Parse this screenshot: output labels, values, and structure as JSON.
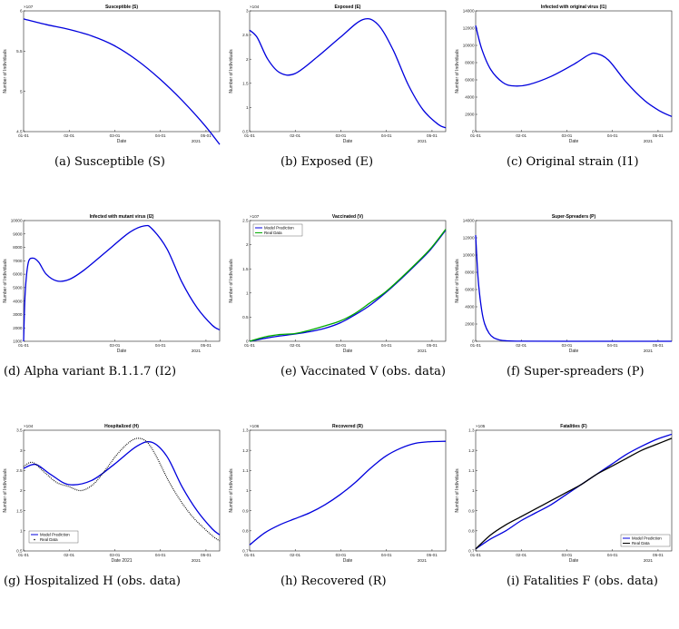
{
  "chart_data": [
    {
      "panel": "a",
      "type": "line",
      "title": "Susceptible (S)",
      "xlabel": "Date",
      "ylabel": "Number of Individuals",
      "exponent": "10^7",
      "caption": "(a) Susceptible (S)",
      "xticks": [
        "01-01",
        "02-01",
        "03-01",
        "04-01",
        "05-01"
      ],
      "year_label": "2021",
      "xlim": [
        0,
        130
      ],
      "ylim": [
        4.5,
        6.0
      ],
      "yticks": [
        "4.5",
        "5",
        "5.5",
        "6"
      ],
      "series": [
        {
          "name": "",
          "color": "#0000dd",
          "x": [
            0,
            15,
            30,
            45,
            60,
            75,
            90,
            105,
            120,
            130
          ],
          "y": [
            5.9,
            5.83,
            5.77,
            5.69,
            5.57,
            5.39,
            5.16,
            4.89,
            4.58,
            4.34
          ]
        }
      ]
    },
    {
      "panel": "b",
      "type": "line",
      "title": "Exposed (E)",
      "xlabel": "Date",
      "ylabel": "Number of Individuals",
      "exponent": "10^4",
      "caption": "(b) Exposed (E)",
      "xticks": [
        "01-01",
        "02-01",
        "03-01",
        "04-01",
        "05-01"
      ],
      "year_label": "2021",
      "xlim": [
        0,
        130
      ],
      "ylim": [
        0.5,
        3.0
      ],
      "yticks": [
        "0.5",
        "1",
        "1.5",
        "2",
        "2.5",
        "3"
      ],
      "series": [
        {
          "name": "",
          "color": "#0000dd",
          "x": [
            0,
            5,
            12,
            20,
            30,
            45,
            60,
            75,
            85,
            95,
            105,
            115,
            125,
            130
          ],
          "y": [
            2.6,
            2.45,
            2.0,
            1.72,
            1.7,
            2.05,
            2.45,
            2.82,
            2.72,
            2.2,
            1.48,
            0.95,
            0.65,
            0.58
          ]
        }
      ]
    },
    {
      "panel": "c",
      "type": "line",
      "title": "Infected with original virus (I1)",
      "xlabel": "Date",
      "ylabel": "Number of Individuals",
      "exponent": "",
      "caption": "(c) Original strain (I1)",
      "xticks": [
        "01-01",
        "02-01",
        "03-01",
        "04-01",
        "05-01"
      ],
      "year_label": "2021",
      "xlim": [
        0,
        130
      ],
      "ylim": [
        0,
        14000
      ],
      "yticks": [
        "0",
        "2000",
        "4000",
        "6000",
        "8000",
        "10000",
        "12000",
        "14000"
      ],
      "series": [
        {
          "name": "",
          "color": "#0000dd",
          "x": [
            0,
            4,
            10,
            18,
            25,
            35,
            50,
            65,
            75,
            80,
            88,
            100,
            112,
            122,
            130
          ],
          "y": [
            12300,
            9600,
            7200,
            5700,
            5300,
            5450,
            6400,
            7800,
            8900,
            9050,
            8300,
            5700,
            3600,
            2400,
            1750
          ]
        }
      ]
    },
    {
      "panel": "d",
      "type": "line",
      "title": "Infected with mutant virus (I2)",
      "xlabel": "Date",
      "ylabel": "Number of Individuals",
      "exponent": "",
      "caption": "(d) Alpha variant B.1.1.7 (I2)",
      "xticks": [
        "01-01",
        "03-01",
        "04-01",
        "05-01"
      ],
      "year_label": "2021",
      "xlim": [
        0,
        130
      ],
      "ylim": [
        1000,
        10000
      ],
      "yticks": [
        "1000",
        "2000",
        "3000",
        "4000",
        "5000",
        "6000",
        "7000",
        "8000",
        "9000",
        "10000"
      ],
      "series": [
        {
          "name": "",
          "color": "#0000dd",
          "x": [
            0,
            1,
            3,
            6,
            10,
            15,
            22,
            30,
            40,
            55,
            70,
            80,
            85,
            95,
            105,
            115,
            125,
            130
          ],
          "y": [
            1000,
            4500,
            6800,
            7200,
            6900,
            6000,
            5500,
            5600,
            6300,
            7700,
            9100,
            9600,
            9400,
            7900,
            5400,
            3500,
            2200,
            1850
          ]
        }
      ]
    },
    {
      "panel": "e",
      "type": "line",
      "title": "Vaccinated (V)",
      "xlabel": "Date",
      "ylabel": "Number of Individuals",
      "exponent": "10^7",
      "caption": "(e) Vaccinated V (obs. data)",
      "xticks": [
        "01-01",
        "02-01",
        "03-01",
        "04-01",
        "05-01"
      ],
      "year_label": "2021",
      "xlim": [
        0,
        130
      ],
      "ylim": [
        0,
        2.5
      ],
      "yticks": [
        "0",
        "0.5",
        "1",
        "1.5",
        "2",
        "2.5"
      ],
      "legend": [
        "Model Prediction",
        "Real Data"
      ],
      "series": [
        {
          "name": "Model Prediction",
          "color": "#0000dd",
          "x": [
            0,
            10,
            20,
            30,
            40,
            50,
            60,
            70,
            80,
            90,
            100,
            110,
            120,
            130
          ],
          "y": [
            0.0,
            0.06,
            0.11,
            0.15,
            0.2,
            0.27,
            0.38,
            0.55,
            0.75,
            1.0,
            1.28,
            1.58,
            1.9,
            2.3
          ]
        },
        {
          "name": "Real Data",
          "color": "#00aa00",
          "x": [
            0,
            10,
            20,
            30,
            40,
            50,
            60,
            70,
            80,
            90,
            100,
            110,
            120,
            130
          ],
          "y": [
            0.0,
            0.09,
            0.14,
            0.16,
            0.23,
            0.32,
            0.42,
            0.58,
            0.8,
            1.02,
            1.3,
            1.6,
            1.92,
            2.32
          ]
        }
      ]
    },
    {
      "panel": "f",
      "type": "line",
      "title": "Super-Spreaders (P)",
      "xlabel": "Date",
      "ylabel": "Number of Individuals",
      "exponent": "",
      "caption": "(f) Super-spreaders (P)",
      "xticks": [
        "01-01",
        "02-01",
        "03-01",
        "04-01",
        "05-01"
      ],
      "year_label": "2021",
      "xlim": [
        0,
        130
      ],
      "ylim": [
        0,
        14000
      ],
      "yticks": [
        "0",
        "2000",
        "4000",
        "6000",
        "8000",
        "10000",
        "12000",
        "14000"
      ],
      "series": [
        {
          "name": "",
          "color": "#0000dd",
          "x": [
            0,
            1,
            2,
            4,
            6,
            9,
            12,
            16,
            20,
            30,
            60,
            130
          ],
          "y": [
            12300,
            9000,
            6500,
            3600,
            2000,
            900,
            400,
            150,
            60,
            10,
            0,
            0
          ]
        }
      ]
    },
    {
      "panel": "g",
      "type": "line",
      "title": "Hospitalized (H)",
      "xlabel": "Date 2021",
      "ylabel": "Number of Individuals",
      "exponent": "10^4",
      "caption": "(g) Hospitalized H (obs. data)",
      "xticks": [
        "01-01",
        "02-01",
        "03-01",
        "04-01",
        "05-01"
      ],
      "year_label": "2021",
      "xlim": [
        0,
        130
      ],
      "ylim": [
        0.5,
        3.5
      ],
      "yticks": [
        "0.5",
        "1",
        "1.5",
        "2",
        "2.5",
        "3",
        "3.5"
      ],
      "legend": [
        "Model Prediction",
        "Real Data"
      ],
      "series": [
        {
          "name": "Model Prediction",
          "color": "#0000dd",
          "x": [
            0,
            8,
            18,
            30,
            45,
            60,
            75,
            85,
            95,
            105,
            115,
            125,
            130
          ],
          "y": [
            2.55,
            2.65,
            2.4,
            2.15,
            2.25,
            2.65,
            3.1,
            3.2,
            2.85,
            2.1,
            1.5,
            1.05,
            0.9
          ]
        },
        {
          "name": "Real Data",
          "color": "#000000",
          "x": [
            0,
            6,
            14,
            22,
            30,
            38,
            46,
            54,
            62,
            70,
            76,
            82,
            88,
            96,
            104,
            112,
            120,
            126,
            130
          ],
          "y": [
            2.6,
            2.7,
            2.45,
            2.2,
            2.1,
            2.0,
            2.15,
            2.5,
            2.9,
            3.2,
            3.3,
            3.2,
            2.85,
            2.25,
            1.75,
            1.35,
            1.05,
            0.85,
            0.75
          ]
        }
      ]
    },
    {
      "panel": "h",
      "type": "line",
      "title": "Recovered (R)",
      "xlabel": "Date",
      "ylabel": "Number of Individuals",
      "exponent": "10^6",
      "caption": "(h) Recovered (R)",
      "xticks": [
        "01-01",
        "02-01",
        "03-01",
        "04-01",
        "05-01"
      ],
      "year_label": "2021",
      "xlim": [
        0,
        130
      ],
      "ylim": [
        0.7,
        1.3
      ],
      "yticks": [
        "0.7",
        "0.8",
        "0.9",
        "1",
        "1.1",
        "1.2",
        "1.3"
      ],
      "series": [
        {
          "name": "",
          "color": "#0000dd",
          "x": [
            0,
            10,
            20,
            30,
            40,
            50,
            60,
            70,
            80,
            90,
            100,
            110,
            120,
            130
          ],
          "y": [
            0.73,
            0.79,
            0.83,
            0.86,
            0.89,
            0.93,
            0.98,
            1.04,
            1.11,
            1.17,
            1.21,
            1.235,
            1.243,
            1.245
          ]
        }
      ]
    },
    {
      "panel": "i",
      "type": "line",
      "title": "Fatalities (F)",
      "xlabel": "Date",
      "ylabel": "Number of Individuals",
      "exponent": "10^5",
      "caption": "(i) Fatalities F (obs. data)",
      "xticks": [
        "01-01",
        "02-01",
        "03-01",
        "04-01",
        "05-01"
      ],
      "year_label": "2021",
      "xlim": [
        0,
        130
      ],
      "ylim": [
        0.7,
        1.3
      ],
      "yticks": [
        "0.7",
        "0.8",
        "0.9",
        "1",
        "1.1",
        "1.2",
        "1.3"
      ],
      "legend": [
        "Model Prediction",
        "Real Data"
      ],
      "series": [
        {
          "name": "Model Prediction",
          "color": "#0000dd",
          "x": [
            0,
            10,
            20,
            30,
            40,
            50,
            60,
            70,
            80,
            90,
            100,
            110,
            120,
            130
          ],
          "y": [
            0.71,
            0.76,
            0.8,
            0.85,
            0.89,
            0.93,
            0.98,
            1.03,
            1.08,
            1.13,
            1.18,
            1.22,
            1.255,
            1.28
          ]
        },
        {
          "name": "Real Data",
          "color": "#000000",
          "x": [
            0,
            10,
            20,
            30,
            40,
            50,
            60,
            70,
            80,
            90,
            100,
            110,
            120,
            130
          ],
          "y": [
            0.71,
            0.78,
            0.83,
            0.87,
            0.91,
            0.95,
            0.99,
            1.03,
            1.08,
            1.12,
            1.16,
            1.2,
            1.23,
            1.26
          ]
        }
      ]
    }
  ]
}
